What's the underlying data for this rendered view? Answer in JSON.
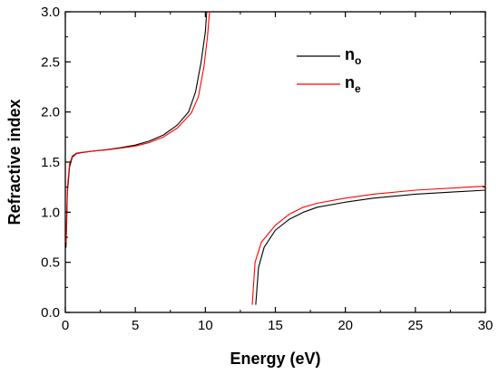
{
  "chart_data": {
    "type": "line",
    "xlabel": "Energy (eV)",
    "ylabel": "Refractive index",
    "xlim": [
      0,
      30
    ],
    "ylim": [
      0,
      3.0
    ],
    "xticks": [
      "0",
      "5",
      "10",
      "15",
      "20",
      "25",
      "30"
    ],
    "yticks": [
      "0.0",
      "0.5",
      "1.0",
      "1.5",
      "2.0",
      "2.5",
      "3.0"
    ],
    "grid": false,
    "legend_position": "top-right",
    "series": [
      {
        "name": "no",
        "name_base": "n",
        "name_sub": "o",
        "color": "#000000",
        "segments": [
          [
            [
              0.05,
              0.65
            ],
            [
              0.15,
              1.2
            ],
            [
              0.3,
              1.45
            ],
            [
              0.5,
              1.55
            ],
            [
              0.8,
              1.585
            ],
            [
              1.2,
              1.595
            ],
            [
              2,
              1.61
            ],
            [
              3,
              1.625
            ],
            [
              4,
              1.645
            ],
            [
              5,
              1.67
            ],
            [
              6,
              1.71
            ],
            [
              7,
              1.77
            ],
            [
              8,
              1.87
            ],
            [
              8.8,
              2.0
            ],
            [
              9.3,
              2.2
            ],
            [
              9.7,
              2.5
            ],
            [
              10.0,
              2.8
            ],
            [
              10.1,
              3.0
            ]
          ],
          [
            [
              13.6,
              0.08
            ],
            [
              13.8,
              0.45
            ],
            [
              14.2,
              0.65
            ],
            [
              15,
              0.82
            ],
            [
              16,
              0.93
            ],
            [
              17,
              1.0
            ],
            [
              18,
              1.05
            ],
            [
              20,
              1.1
            ],
            [
              22,
              1.14
            ],
            [
              25,
              1.18
            ],
            [
              30,
              1.22
            ]
          ]
        ]
      },
      {
        "name": "ne",
        "name_base": "n",
        "name_sub": "e",
        "color": "#ff0000",
        "segments": [
          [
            [
              0.05,
              0.7
            ],
            [
              0.15,
              1.25
            ],
            [
              0.3,
              1.48
            ],
            [
              0.5,
              1.56
            ],
            [
              0.8,
              1.59
            ],
            [
              1.2,
              1.598
            ],
            [
              2,
              1.61
            ],
            [
              3,
              1.622
            ],
            [
              4,
              1.64
            ],
            [
              5,
              1.66
            ],
            [
              6,
              1.695
            ],
            [
              7,
              1.75
            ],
            [
              8,
              1.84
            ],
            [
              9,
              1.99
            ],
            [
              9.5,
              2.15
            ],
            [
              9.9,
              2.45
            ],
            [
              10.15,
              2.75
            ],
            [
              10.3,
              3.0
            ]
          ],
          [
            [
              13.35,
              0.08
            ],
            [
              13.55,
              0.5
            ],
            [
              14,
              0.7
            ],
            [
              15,
              0.87
            ],
            [
              16,
              0.98
            ],
            [
              17,
              1.05
            ],
            [
              18,
              1.09
            ],
            [
              20,
              1.14
            ],
            [
              22,
              1.18
            ],
            [
              25,
              1.22
            ],
            [
              30,
              1.26
            ]
          ]
        ]
      }
    ]
  }
}
